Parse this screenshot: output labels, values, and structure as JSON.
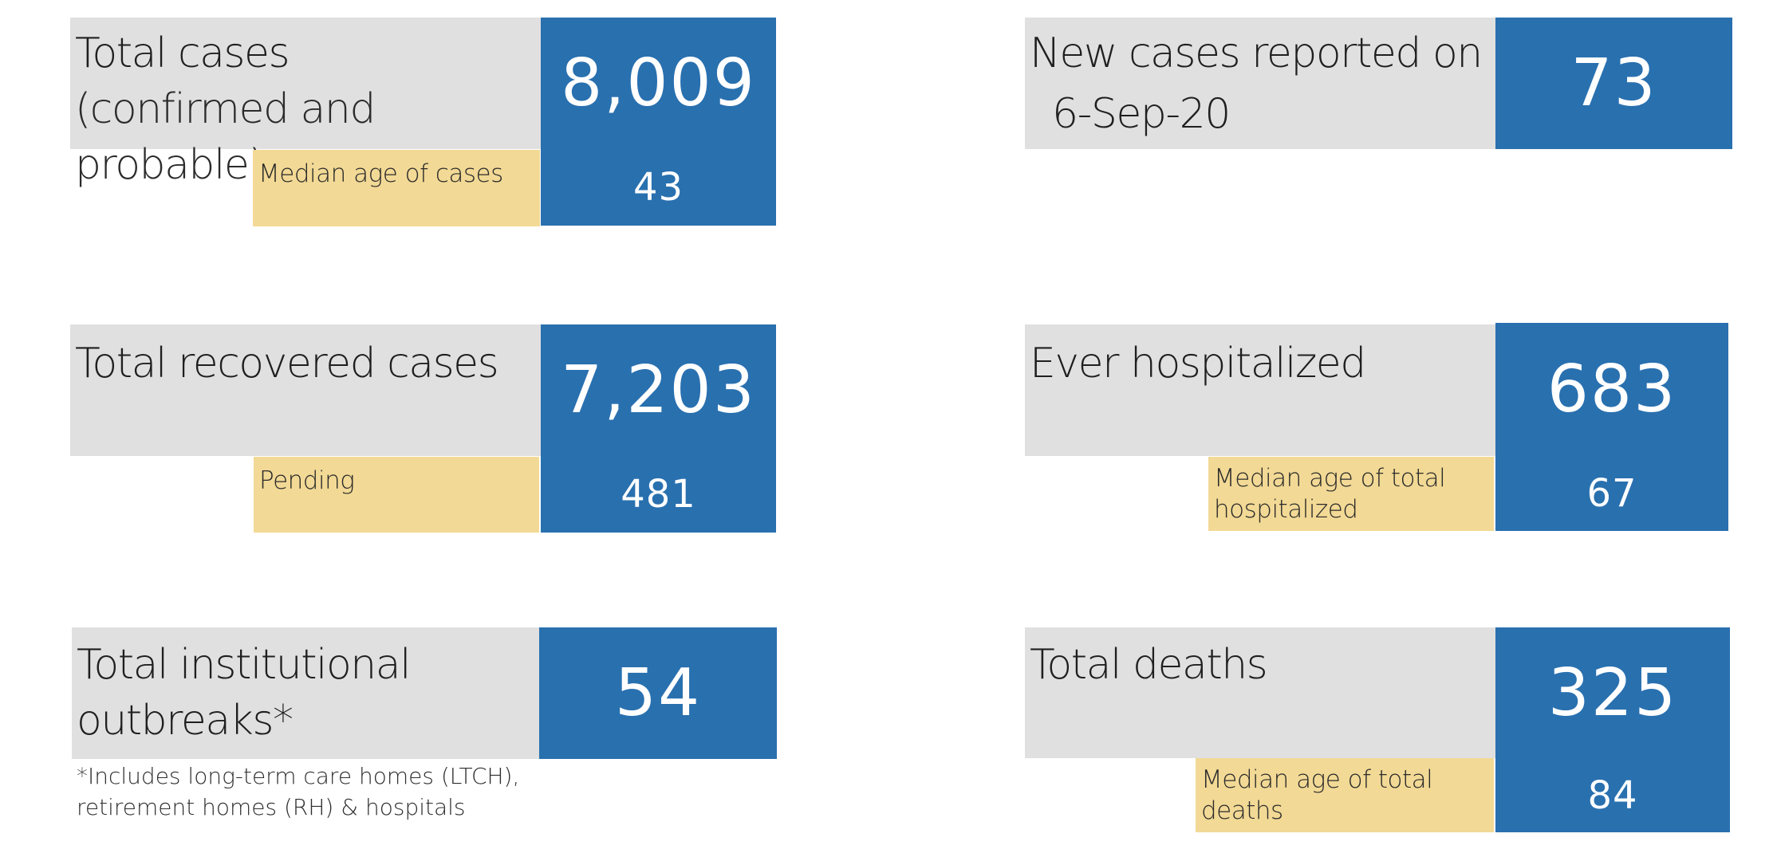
{
  "total_cases": {
    "label": "Total cases",
    "sublabel": "(confirmed and probable)",
    "value": "8,009",
    "median_age_label": "Median age of cases",
    "median_age_value": "43"
  },
  "new_cases": {
    "label": "New cases reported on",
    "date": "6-Sep-20",
    "value": "73"
  },
  "recovered": {
    "label": "Total recovered cases",
    "value": "7,203",
    "pending_label": "Pending",
    "pending_value": "481"
  },
  "hospitalized": {
    "label": "Ever hospitalized",
    "value": "683",
    "median_age_label": "Median age of total hospitalized",
    "median_age_value": "67"
  },
  "outbreaks": {
    "label": "Total institutional outbreaks*",
    "value": "54",
    "footnote": "*Includes long-term care homes (LTCH), retirement homes (RH) & hospitals"
  },
  "deaths": {
    "label": "Total deaths",
    "value": "325",
    "median_age_label": "Median age of total deaths",
    "median_age_value": "84"
  },
  "colors": {
    "label_bg": "#e0e0e0",
    "value_bg": "#2970af",
    "sub_bg": "#f2d995"
  }
}
